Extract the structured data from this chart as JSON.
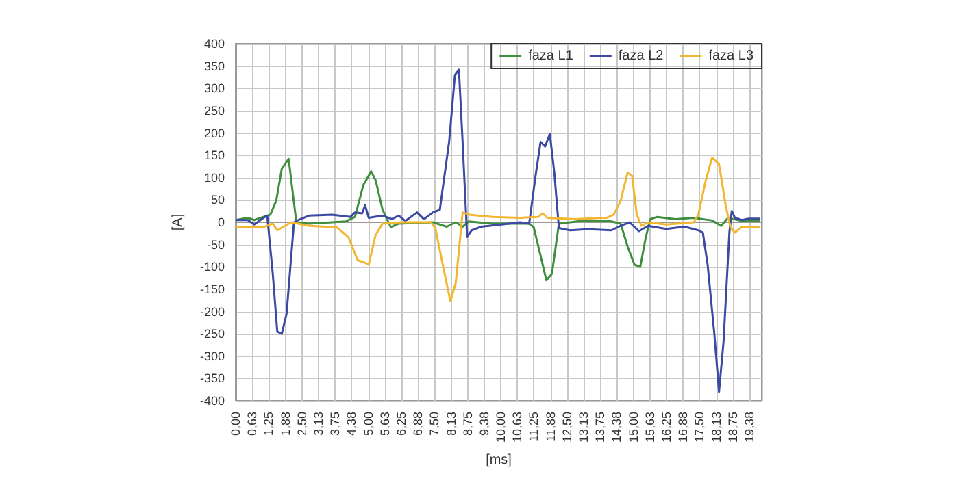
{
  "chart_data": {
    "type": "line",
    "xlabel": "[ms]",
    "ylabel": "[A]",
    "xlim": [
      0,
      19.84
    ],
    "xticks": [
      {
        "value": 0,
        "label": "0,00"
      },
      {
        "value": 0.625,
        "label": "0,63"
      },
      {
        "value": 1.25,
        "label": "1,25"
      },
      {
        "value": 1.875,
        "label": "1,88"
      },
      {
        "value": 2.5,
        "label": "2,50"
      },
      {
        "value": 3.125,
        "label": "3,13"
      },
      {
        "value": 3.75,
        "label": "3,75"
      },
      {
        "value": 4.375,
        "label": "4,38"
      },
      {
        "value": 5,
        "label": "5,00"
      },
      {
        "value": 5.625,
        "label": "5,63"
      },
      {
        "value": 6.25,
        "label": "6,25"
      },
      {
        "value": 6.875,
        "label": "6,88"
      },
      {
        "value": 7.5,
        "label": "7,50"
      },
      {
        "value": 8.125,
        "label": "8,13"
      },
      {
        "value": 8.75,
        "label": "8,75"
      },
      {
        "value": 9.375,
        "label": "9,38"
      },
      {
        "value": 10,
        "label": "10,00"
      },
      {
        "value": 10.625,
        "label": "10,63"
      },
      {
        "value": 11.25,
        "label": "11,25"
      },
      {
        "value": 11.875,
        "label": "11,88"
      },
      {
        "value": 12.5,
        "label": "12,50"
      },
      {
        "value": 13.125,
        "label": "13,13"
      },
      {
        "value": 13.75,
        "label": "13,75"
      },
      {
        "value": 14.375,
        "label": "14,38"
      },
      {
        "value": 15,
        "label": "15,00"
      },
      {
        "value": 15.625,
        "label": "15,63"
      },
      {
        "value": 16.25,
        "label": "16,25"
      },
      {
        "value": 16.875,
        "label": "16,88"
      },
      {
        "value": 17.5,
        "label": "17,50"
      },
      {
        "value": 18.125,
        "label": "18,13"
      },
      {
        "value": 18.75,
        "label": "18,75"
      },
      {
        "value": 19.375,
        "label": "19,38"
      }
    ],
    "ylim": [
      -400,
      400
    ],
    "yticks": [
      -400,
      -350,
      -300,
      -250,
      -200,
      -150,
      -100,
      -50,
      0,
      50,
      100,
      150,
      200,
      250,
      300,
      350,
      400
    ],
    "grid": true,
    "legend": "top right",
    "marker": "none",
    "line_style": "solid",
    "series": [
      {
        "name": "faza L1",
        "color": "#3f8f3f",
        "x": [
          0,
          0.46,
          0.7,
          1.05,
          1.31,
          1.53,
          1.74,
          2.0,
          2.17,
          2.29,
          2.78,
          3.64,
          4.16,
          4.5,
          4.82,
          5.11,
          5.28,
          5.54,
          5.85,
          6.15,
          7.44,
          7.96,
          8.3,
          8.56,
          8.79,
          9.68,
          11.07,
          11.24,
          11.5,
          11.72,
          11.93,
          12.19,
          13.14,
          13.83,
          14.17,
          14.52,
          14.78,
          15.04,
          15.26,
          15.47,
          15.64,
          15.9,
          16.59,
          17.28,
          17.97,
          18.31,
          18.57,
          19.0,
          19.78
        ],
        "values": [
          5,
          10,
          5,
          12,
          17,
          48,
          120,
          142,
          58,
          0,
          -3,
          0,
          2,
          12,
          84,
          114,
          94,
          28,
          -11,
          -3,
          0,
          -10,
          0,
          -10,
          2,
          -3,
          -3,
          -11,
          -75,
          -130,
          -115,
          -3,
          4,
          4,
          2,
          -3,
          -54,
          -95,
          -100,
          -33,
          7,
          12,
          7,
          10,
          4,
          -8,
          10,
          4,
          4
        ]
      },
      {
        "name": "faza L2",
        "color": "#3b4aa2",
        "x": [
          0,
          0.46,
          0.7,
          1.05,
          1.19,
          1.4,
          1.57,
          1.74,
          1.92,
          2.2,
          2.37,
          2.78,
          3.64,
          4.33,
          4.5,
          4.77,
          4.88,
          5.02,
          5.54,
          5.89,
          6.15,
          6.4,
          6.84,
          7.1,
          7.44,
          7.7,
          8.05,
          8.27,
          8.42,
          8.56,
          8.73,
          8.9,
          9.25,
          10.03,
          10.72,
          11.07,
          11.32,
          11.5,
          11.67,
          11.85,
          12.02,
          12.19,
          12.62,
          13.14,
          13.48,
          14.17,
          14.52,
          14.86,
          15.21,
          15.55,
          16.24,
          16.93,
          17.45,
          17.62,
          17.8,
          18.05,
          18.23,
          18.4,
          18.62,
          18.71,
          18.83,
          19.09,
          19.35,
          19.78
        ],
        "values": [
          5,
          5,
          -5,
          10,
          15,
          -115,
          -245,
          -250,
          -205,
          0,
          5,
          15,
          17,
          12,
          22,
          20,
          38,
          10,
          15,
          7,
          15,
          3,
          22,
          7,
          22,
          28,
          180,
          330,
          342,
          180,
          -33,
          -18,
          -10,
          -5,
          0,
          -3,
          108,
          180,
          170,
          198,
          110,
          -13,
          -18,
          -16,
          -16,
          -18,
          -8,
          0,
          -20,
          -8,
          -15,
          -10,
          -18,
          -23,
          -95,
          -248,
          -380,
          -268,
          -23,
          25,
          10,
          5,
          8,
          8
        ]
      },
      {
        "name": "faza L3",
        "color": "#f2b631",
        "x": [
          0,
          1.05,
          1.4,
          1.57,
          2.09,
          2.78,
          3.81,
          4.25,
          4.6,
          4.85,
          5.02,
          5.28,
          5.54,
          6.24,
          7.36,
          7.53,
          7.88,
          8.1,
          8.3,
          8.56,
          8.82,
          9.68,
          10.72,
          11.41,
          11.58,
          11.76,
          12.79,
          13.83,
          14.0,
          14.26,
          14.52,
          14.78,
          14.95,
          15.13,
          15.3,
          15.55,
          16.24,
          17.28,
          17.45,
          17.71,
          17.97,
          18.23,
          18.48,
          18.66,
          18.83,
          19.09,
          19.78
        ],
        "values": [
          -11,
          -11,
          -3,
          -18,
          0,
          -8,
          -11,
          -33,
          -85,
          -90,
          -95,
          -28,
          -3,
          0,
          0,
          -13,
          -115,
          -177,
          -136,
          22,
          17,
          12,
          10,
          12,
          20,
          10,
          7,
          10,
          10,
          17,
          48,
          111,
          104,
          17,
          -8,
          0,
          -5,
          0,
          17,
          89,
          145,
          130,
          38,
          -11,
          -23,
          -10,
          -10
        ]
      }
    ]
  }
}
